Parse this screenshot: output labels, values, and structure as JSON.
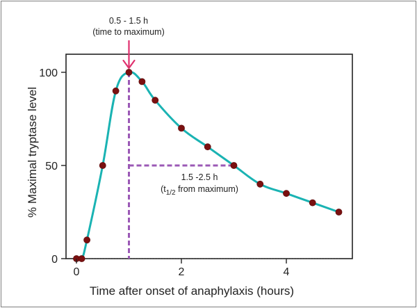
{
  "chart_data": {
    "type": "line",
    "title": "",
    "xlabel": "Time after onset of anaphylaxis  (hours)",
    "ylabel": "% Maximal tryptase level",
    "xlim": [
      0,
      5.2
    ],
    "ylim": [
      0,
      110
    ],
    "x_ticks": [
      {
        "value": 0,
        "label": "0"
      },
      {
        "value": 2,
        "label": "2"
      },
      {
        "value": 4,
        "label": "4"
      }
    ],
    "y_ticks": [
      {
        "value": 0,
        "label": "0"
      },
      {
        "value": 50,
        "label": "50"
      },
      {
        "value": 100,
        "label": "100"
      }
    ],
    "grid": false,
    "series": [
      {
        "x": [
          0,
          0.1,
          0.2,
          0.5,
          0.75,
          1.0,
          1.25,
          1.5,
          2.0,
          2.5,
          3.0,
          3.5,
          4.0,
          4.5,
          5.0
        ],
        "y": [
          0,
          0,
          10,
          50,
          90,
          100,
          95,
          85,
          70,
          60,
          50,
          40,
          35,
          30,
          25
        ]
      }
    ],
    "baseline": {
      "y": 0,
      "x_start": 0,
      "x_end": 5
    },
    "peak_marker": {
      "x": 1.0,
      "y": 100
    },
    "halflife_marker": {
      "x_start": 1.0,
      "x_end": 3.0,
      "y": 50
    },
    "annotations": {
      "peak_line1": "0.5 - 1.5 h",
      "peak_line2": "(time to maximum)",
      "halflife_line1": "1.5 -2.5 h",
      "halflife_prefix": "(t",
      "halflife_sub": "1/2",
      "halflife_suffix": " from maximum)"
    },
    "colors": {
      "curve": "#1ab3b3",
      "points": "#7a1010",
      "dashed": "#9b59b6",
      "arrow": "#e0306e",
      "axis": "#222222"
    }
  }
}
